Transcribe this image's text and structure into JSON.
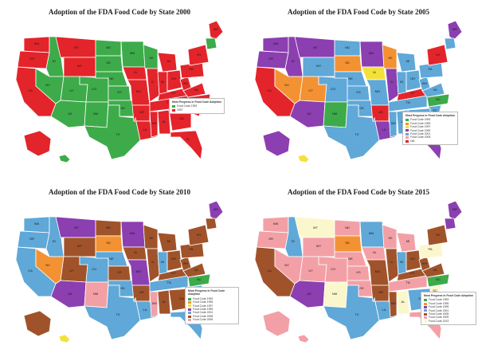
{
  "colors": {
    "red": "#e3242b",
    "green": "#3dab4a",
    "purple": "#8b3fb0",
    "blue": "#5fa8d8",
    "orange": "#f39233",
    "yellow": "#f3e13a",
    "brown": "#a0532a",
    "pink": "#f2a0a6",
    "cream": "#fbf7cc",
    "teal": "#1f9a6e",
    "ocean": "#ffffff",
    "border": "#ffffff"
  },
  "panels": [
    {
      "title": "Adoption of the FDA Food Code by State 2000",
      "legend": {
        "title": "Most Progress in Food Code Adoption",
        "items": [
          {
            "label": "Food Code 1993",
            "color": "green"
          },
          {
            "label": "1997",
            "color": "red"
          }
        ]
      },
      "states": {
        "WA": "red",
        "OR": "red",
        "CA": "red",
        "ID": "green",
        "NV": "green",
        "MT": "red",
        "WY": "red",
        "UT": "green",
        "AZ": "green",
        "CO": "green",
        "NM": "green",
        "ND": "green",
        "SD": "green",
        "NE": "green",
        "KS": "green",
        "OK": "green",
        "TX": "green",
        "MN": "green",
        "IA": "red",
        "MO": "red",
        "AR": "red",
        "LA": "red",
        "WI": "green",
        "IL": "red",
        "MS": "red",
        "MI": "red",
        "IN": "red",
        "KY": "red",
        "TN": "red",
        "AL": "red",
        "OH": "red",
        "WV": "red",
        "VA": "red",
        "NC": "red",
        "SC": "red",
        "GA": "red",
        "FL": "red",
        "PA": "red",
        "NY": "red",
        "ME": "red",
        "NE2": "green",
        "AK": "red",
        "HI": "green"
      }
    },
    {
      "title": "Adoption of the FDA Food Code by State  2005",
      "legend": {
        "title": "Most Progress in Food Code Adoption",
        "items": [
          {
            "label": "Food Code 1993",
            "color": "green"
          },
          {
            "label": "Food Code 1995",
            "color": "orange"
          },
          {
            "label": "Food Code 1997",
            "color": "yellow"
          },
          {
            "label": "Food Code 1999",
            "color": "purple"
          },
          {
            "label": "Food Code 2001",
            "color": "blue"
          },
          {
            "label": "Food Code 2005",
            "color": "pink"
          },
          {
            "label": "Old",
            "color": "red"
          }
        ]
      },
      "states": {
        "WA": "purple",
        "OR": "purple",
        "CA": "red",
        "ID": "purple",
        "NV": "orange",
        "MT": "purple",
        "WY": "blue",
        "UT": "orange",
        "AZ": "purple",
        "CO": "blue",
        "NM": "green",
        "ND": "blue",
        "SD": "orange",
        "NE": "blue",
        "KS": "blue",
        "OK": "blue",
        "TX": "blue",
        "MN": "purple",
        "IA": "yellow",
        "MO": "blue",
        "AR": "red",
        "LA": "purple",
        "WI": "orange",
        "IL": "purple",
        "MS": "blue",
        "MI": "blue",
        "IN": "blue",
        "KY": "red",
        "TN": "blue",
        "AL": "blue",
        "OH": "blue",
        "WV": "blue",
        "VA": "blue",
        "NC": "green",
        "SC": "blue",
        "GA": "blue",
        "FL": "purple",
        "PA": "blue",
        "NY": "red",
        "ME": "purple",
        "NE2": "blue",
        "AK": "purple",
        "HI": "yellow"
      }
    },
    {
      "title": "Adoption of the FDA Food Code by State  2010",
      "legend": {
        "title": "Most Progress in Food Code Adoption",
        "items": [
          {
            "label": "Food Code 1993",
            "color": "green"
          },
          {
            "label": "Food Code 1995",
            "color": "orange"
          },
          {
            "label": "Food Code 1997",
            "color": "yellow"
          },
          {
            "label": "Food Code 1999",
            "color": "purple"
          },
          {
            "label": "Food Code 2001",
            "color": "blue"
          },
          {
            "label": "Food Code 2005",
            "color": "brown"
          },
          {
            "label": "Food Code 2009",
            "color": "pink"
          }
        ]
      },
      "states": {
        "WA": "blue",
        "OR": "blue",
        "CA": "blue",
        "ID": "blue",
        "NV": "orange",
        "MT": "purple",
        "WY": "brown",
        "UT": "brown",
        "AZ": "purple",
        "CO": "blue",
        "NM": "pink",
        "ND": "brown",
        "SD": "orange",
        "NE": "blue",
        "KS": "brown",
        "OK": "blue",
        "TX": "blue",
        "MN": "purple",
        "IA": "brown",
        "MO": "purple",
        "AR": "brown",
        "LA": "blue",
        "WI": "brown",
        "IL": "brown",
        "MS": "pink",
        "MI": "brown",
        "IN": "blue",
        "KY": "brown",
        "TN": "blue",
        "AL": "brown",
        "OH": "brown",
        "WV": "brown",
        "VA": "brown",
        "NC": "green",
        "SC": "blue",
        "GA": "brown",
        "FL": "blue",
        "PA": "brown",
        "NY": "brown",
        "ME": "purple",
        "NE2": "brown",
        "AK": "brown",
        "HI": "yellow"
      }
    },
    {
      "title": "Adoption of the FDA Food Code by State  2015",
      "legend": {
        "title": "Most Progress in Food Code Adoption",
        "items": [
          {
            "label": "Food Code 1993",
            "color": "green"
          },
          {
            "label": "Food Code 1995",
            "color": "orange"
          },
          {
            "label": "Food Code 1999",
            "color": "purple"
          },
          {
            "label": "Food Code 2001",
            "color": "blue"
          },
          {
            "label": "Food Code 2005",
            "color": "brown"
          },
          {
            "label": "Food Code 2009",
            "color": "pink"
          },
          {
            "label": "Food Code 2013",
            "color": "cream"
          }
        ]
      },
      "states": {
        "WA": "pink",
        "OR": "pink",
        "CA": "brown",
        "ID": "blue",
        "NV": "pink",
        "MT": "cream",
        "WY": "pink",
        "UT": "pink",
        "AZ": "purple",
        "CO": "pink",
        "NM": "cream",
        "ND": "pink",
        "SD": "orange",
        "NE": "pink",
        "KS": "pink",
        "OK": "pink",
        "TX": "blue",
        "MN": "blue",
        "IA": "pink",
        "MO": "brown",
        "AR": "brown",
        "LA": "blue",
        "WI": "pink",
        "IL": "brown",
        "MS": "brown",
        "MI": "pink",
        "IN": "blue",
        "KY": "brown",
        "TN": "pink",
        "AL": "cream",
        "OH": "brown",
        "WV": "brown",
        "VA": "brown",
        "NC": "green",
        "SC": "cream",
        "GA": "blue",
        "FL": "pink",
        "PA": "cream",
        "NY": "brown",
        "ME": "purple",
        "NE2": "purple",
        "AK": "pink",
        "HI": "pink"
      }
    }
  ]
}
